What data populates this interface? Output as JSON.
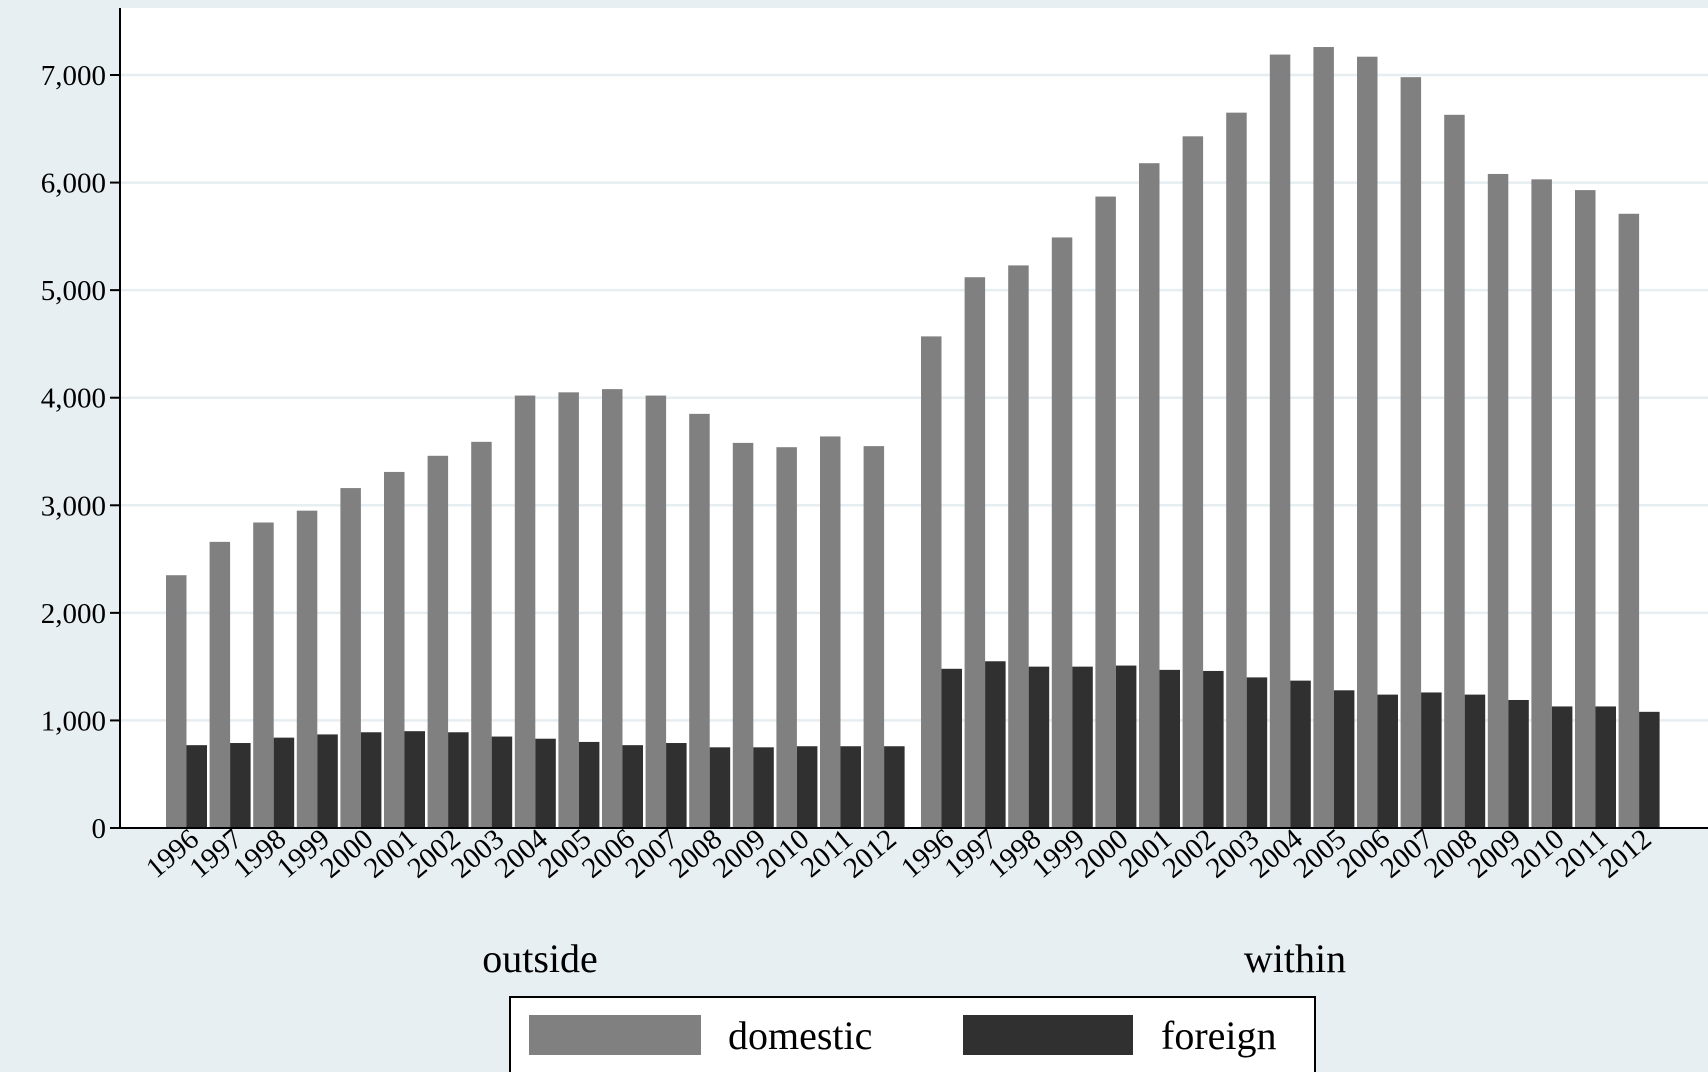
{
  "chart_data": {
    "type": "bar",
    "groups": [
      {
        "label": "outside",
        "categories": [
          "1996",
          "1997",
          "1998",
          "1999",
          "2000",
          "2001",
          "2002",
          "2003",
          "2004",
          "2005",
          "2006",
          "2007",
          "2008",
          "2009",
          "2010",
          "2011",
          "2012"
        ],
        "series": [
          {
            "name": "domestic",
            "values": [
              2350,
              2660,
              2840,
              2950,
              3160,
              3310,
              3460,
              3590,
              4020,
              4050,
              4080,
              4020,
              3850,
              3580,
              3540,
              3640,
              3550
            ]
          },
          {
            "name": "foreign",
            "values": [
              770,
              790,
              840,
              870,
              890,
              900,
              890,
              850,
              830,
              800,
              770,
              790,
              750,
              750,
              760,
              760,
              760
            ]
          }
        ]
      },
      {
        "label": "within",
        "categories": [
          "1996",
          "1997",
          "1998",
          "1999",
          "2000",
          "2001",
          "2002",
          "2003",
          "2004",
          "2005",
          "2006",
          "2007",
          "2008",
          "2009",
          "2010",
          "2011",
          "2012"
        ],
        "series": [
          {
            "name": "domestic",
            "values": [
              4570,
              5120,
              5230,
              5490,
              5870,
              6180,
              6430,
              6650,
              7190,
              7260,
              7170,
              6980,
              6630,
              6080,
              6030,
              5930,
              5710
            ]
          },
          {
            "name": "foreign",
            "values": [
              1480,
              1550,
              1500,
              1500,
              1510,
              1470,
              1460,
              1400,
              1370,
              1280,
              1240,
              1260,
              1240,
              1190,
              1130,
              1130,
              1080
            ]
          }
        ]
      }
    ],
    "y_ticks": [
      "0",
      "1,000",
      "2,000",
      "3,000",
      "4,000",
      "5,000",
      "6,000",
      "7,000"
    ],
    "y_tick_values": [
      0,
      1000,
      2000,
      3000,
      4000,
      5000,
      6000,
      7000
    ],
    "ylim": [
      0,
      7600
    ],
    "legend": [
      "domestic",
      "foreign"
    ],
    "legend_position": "bottom",
    "grid": true,
    "colors": {
      "domestic": "#808080",
      "foreign": "#303030",
      "grid": "#e6eef2",
      "plot_bg": "#ffffff",
      "page_bg": "#e8eff2"
    }
  }
}
